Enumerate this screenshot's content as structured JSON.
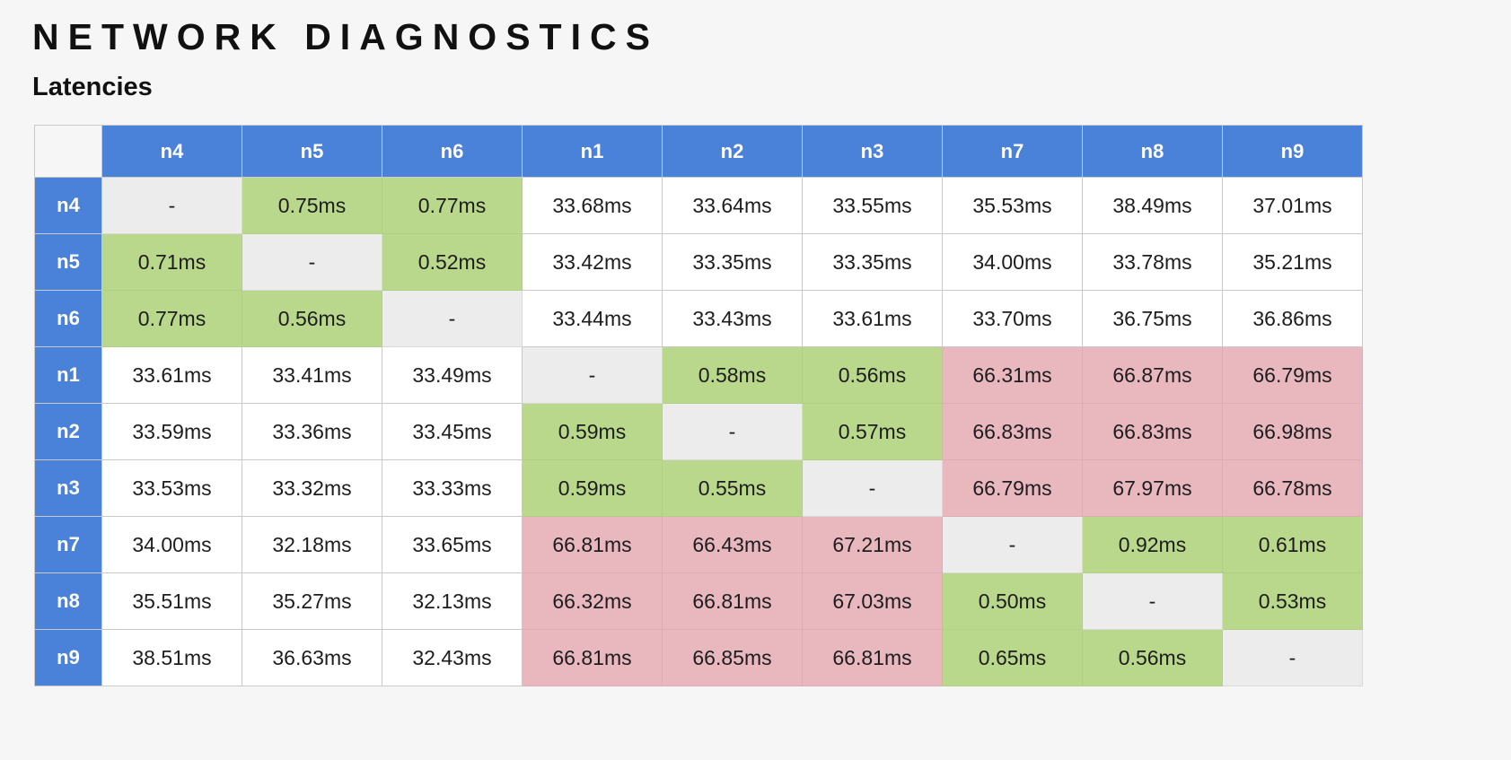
{
  "header": {
    "title": "NETWORK DIAGNOSTICS",
    "subtitle": "Latencies"
  },
  "colors": {
    "header_blue": "#4a81d9",
    "fast_green": "#b9d88b",
    "slow_red": "#e9b8bf",
    "diagonal_gray": "#ececec",
    "normal_white": "#ffffff",
    "page_background": "#f6f6f6"
  },
  "chart_data": {
    "type": "table",
    "title": "Latencies",
    "units": "ms",
    "columns": [
      "n4",
      "n5",
      "n6",
      "n1",
      "n2",
      "n3",
      "n7",
      "n8",
      "n9"
    ],
    "rows": [
      {
        "label": "n4",
        "cells": [
          {
            "v": "-",
            "s": "self"
          },
          {
            "v": "0.75ms",
            "s": "fast"
          },
          {
            "v": "0.77ms",
            "s": "fast"
          },
          {
            "v": "33.68ms",
            "s": "mid"
          },
          {
            "v": "33.64ms",
            "s": "mid"
          },
          {
            "v": "33.55ms",
            "s": "mid"
          },
          {
            "v": "35.53ms",
            "s": "mid"
          },
          {
            "v": "38.49ms",
            "s": "mid"
          },
          {
            "v": "37.01ms",
            "s": "mid"
          }
        ]
      },
      {
        "label": "n5",
        "cells": [
          {
            "v": "0.71ms",
            "s": "fast"
          },
          {
            "v": "-",
            "s": "self"
          },
          {
            "v": "0.52ms",
            "s": "fast"
          },
          {
            "v": "33.42ms",
            "s": "mid"
          },
          {
            "v": "33.35ms",
            "s": "mid"
          },
          {
            "v": "33.35ms",
            "s": "mid"
          },
          {
            "v": "34.00ms",
            "s": "mid"
          },
          {
            "v": "33.78ms",
            "s": "mid"
          },
          {
            "v": "35.21ms",
            "s": "mid"
          }
        ]
      },
      {
        "label": "n6",
        "cells": [
          {
            "v": "0.77ms",
            "s": "fast"
          },
          {
            "v": "0.56ms",
            "s": "fast"
          },
          {
            "v": "-",
            "s": "self"
          },
          {
            "v": "33.44ms",
            "s": "mid"
          },
          {
            "v": "33.43ms",
            "s": "mid"
          },
          {
            "v": "33.61ms",
            "s": "mid"
          },
          {
            "v": "33.70ms",
            "s": "mid"
          },
          {
            "v": "36.75ms",
            "s": "mid"
          },
          {
            "v": "36.86ms",
            "s": "mid"
          }
        ]
      },
      {
        "label": "n1",
        "cells": [
          {
            "v": "33.61ms",
            "s": "mid"
          },
          {
            "v": "33.41ms",
            "s": "mid"
          },
          {
            "v": "33.49ms",
            "s": "mid"
          },
          {
            "v": "-",
            "s": "self"
          },
          {
            "v": "0.58ms",
            "s": "fast"
          },
          {
            "v": "0.56ms",
            "s": "fast"
          },
          {
            "v": "66.31ms",
            "s": "slow"
          },
          {
            "v": "66.87ms",
            "s": "slow"
          },
          {
            "v": "66.79ms",
            "s": "slow"
          }
        ]
      },
      {
        "label": "n2",
        "cells": [
          {
            "v": "33.59ms",
            "s": "mid"
          },
          {
            "v": "33.36ms",
            "s": "mid"
          },
          {
            "v": "33.45ms",
            "s": "mid"
          },
          {
            "v": "0.59ms",
            "s": "fast"
          },
          {
            "v": "-",
            "s": "self"
          },
          {
            "v": "0.57ms",
            "s": "fast"
          },
          {
            "v": "66.83ms",
            "s": "slow"
          },
          {
            "v": "66.83ms",
            "s": "slow"
          },
          {
            "v": "66.98ms",
            "s": "slow"
          }
        ]
      },
      {
        "label": "n3",
        "cells": [
          {
            "v": "33.53ms",
            "s": "mid"
          },
          {
            "v": "33.32ms",
            "s": "mid"
          },
          {
            "v": "33.33ms",
            "s": "mid"
          },
          {
            "v": "0.59ms",
            "s": "fast"
          },
          {
            "v": "0.55ms",
            "s": "fast"
          },
          {
            "v": "-",
            "s": "self"
          },
          {
            "v": "66.79ms",
            "s": "slow"
          },
          {
            "v": "67.97ms",
            "s": "slow"
          },
          {
            "v": "66.78ms",
            "s": "slow"
          }
        ]
      },
      {
        "label": "n7",
        "cells": [
          {
            "v": "34.00ms",
            "s": "mid"
          },
          {
            "v": "32.18ms",
            "s": "mid"
          },
          {
            "v": "33.65ms",
            "s": "mid"
          },
          {
            "v": "66.81ms",
            "s": "slow"
          },
          {
            "v": "66.43ms",
            "s": "slow"
          },
          {
            "v": "67.21ms",
            "s": "slow"
          },
          {
            "v": "-",
            "s": "self"
          },
          {
            "v": "0.92ms",
            "s": "fast"
          },
          {
            "v": "0.61ms",
            "s": "fast"
          }
        ]
      },
      {
        "label": "n8",
        "cells": [
          {
            "v": "35.51ms",
            "s": "mid"
          },
          {
            "v": "35.27ms",
            "s": "mid"
          },
          {
            "v": "32.13ms",
            "s": "mid"
          },
          {
            "v": "66.32ms",
            "s": "slow"
          },
          {
            "v": "66.81ms",
            "s": "slow"
          },
          {
            "v": "67.03ms",
            "s": "slow"
          },
          {
            "v": "0.50ms",
            "s": "fast"
          },
          {
            "v": "-",
            "s": "self"
          },
          {
            "v": "0.53ms",
            "s": "fast"
          }
        ]
      },
      {
        "label": "n9",
        "cells": [
          {
            "v": "38.51ms",
            "s": "mid"
          },
          {
            "v": "36.63ms",
            "s": "mid"
          },
          {
            "v": "32.43ms",
            "s": "mid"
          },
          {
            "v": "66.81ms",
            "s": "slow"
          },
          {
            "v": "66.85ms",
            "s": "slow"
          },
          {
            "v": "66.81ms",
            "s": "slow"
          },
          {
            "v": "0.65ms",
            "s": "fast"
          },
          {
            "v": "0.56ms",
            "s": "fast"
          },
          {
            "v": "-",
            "s": "self"
          }
        ]
      }
    ]
  }
}
